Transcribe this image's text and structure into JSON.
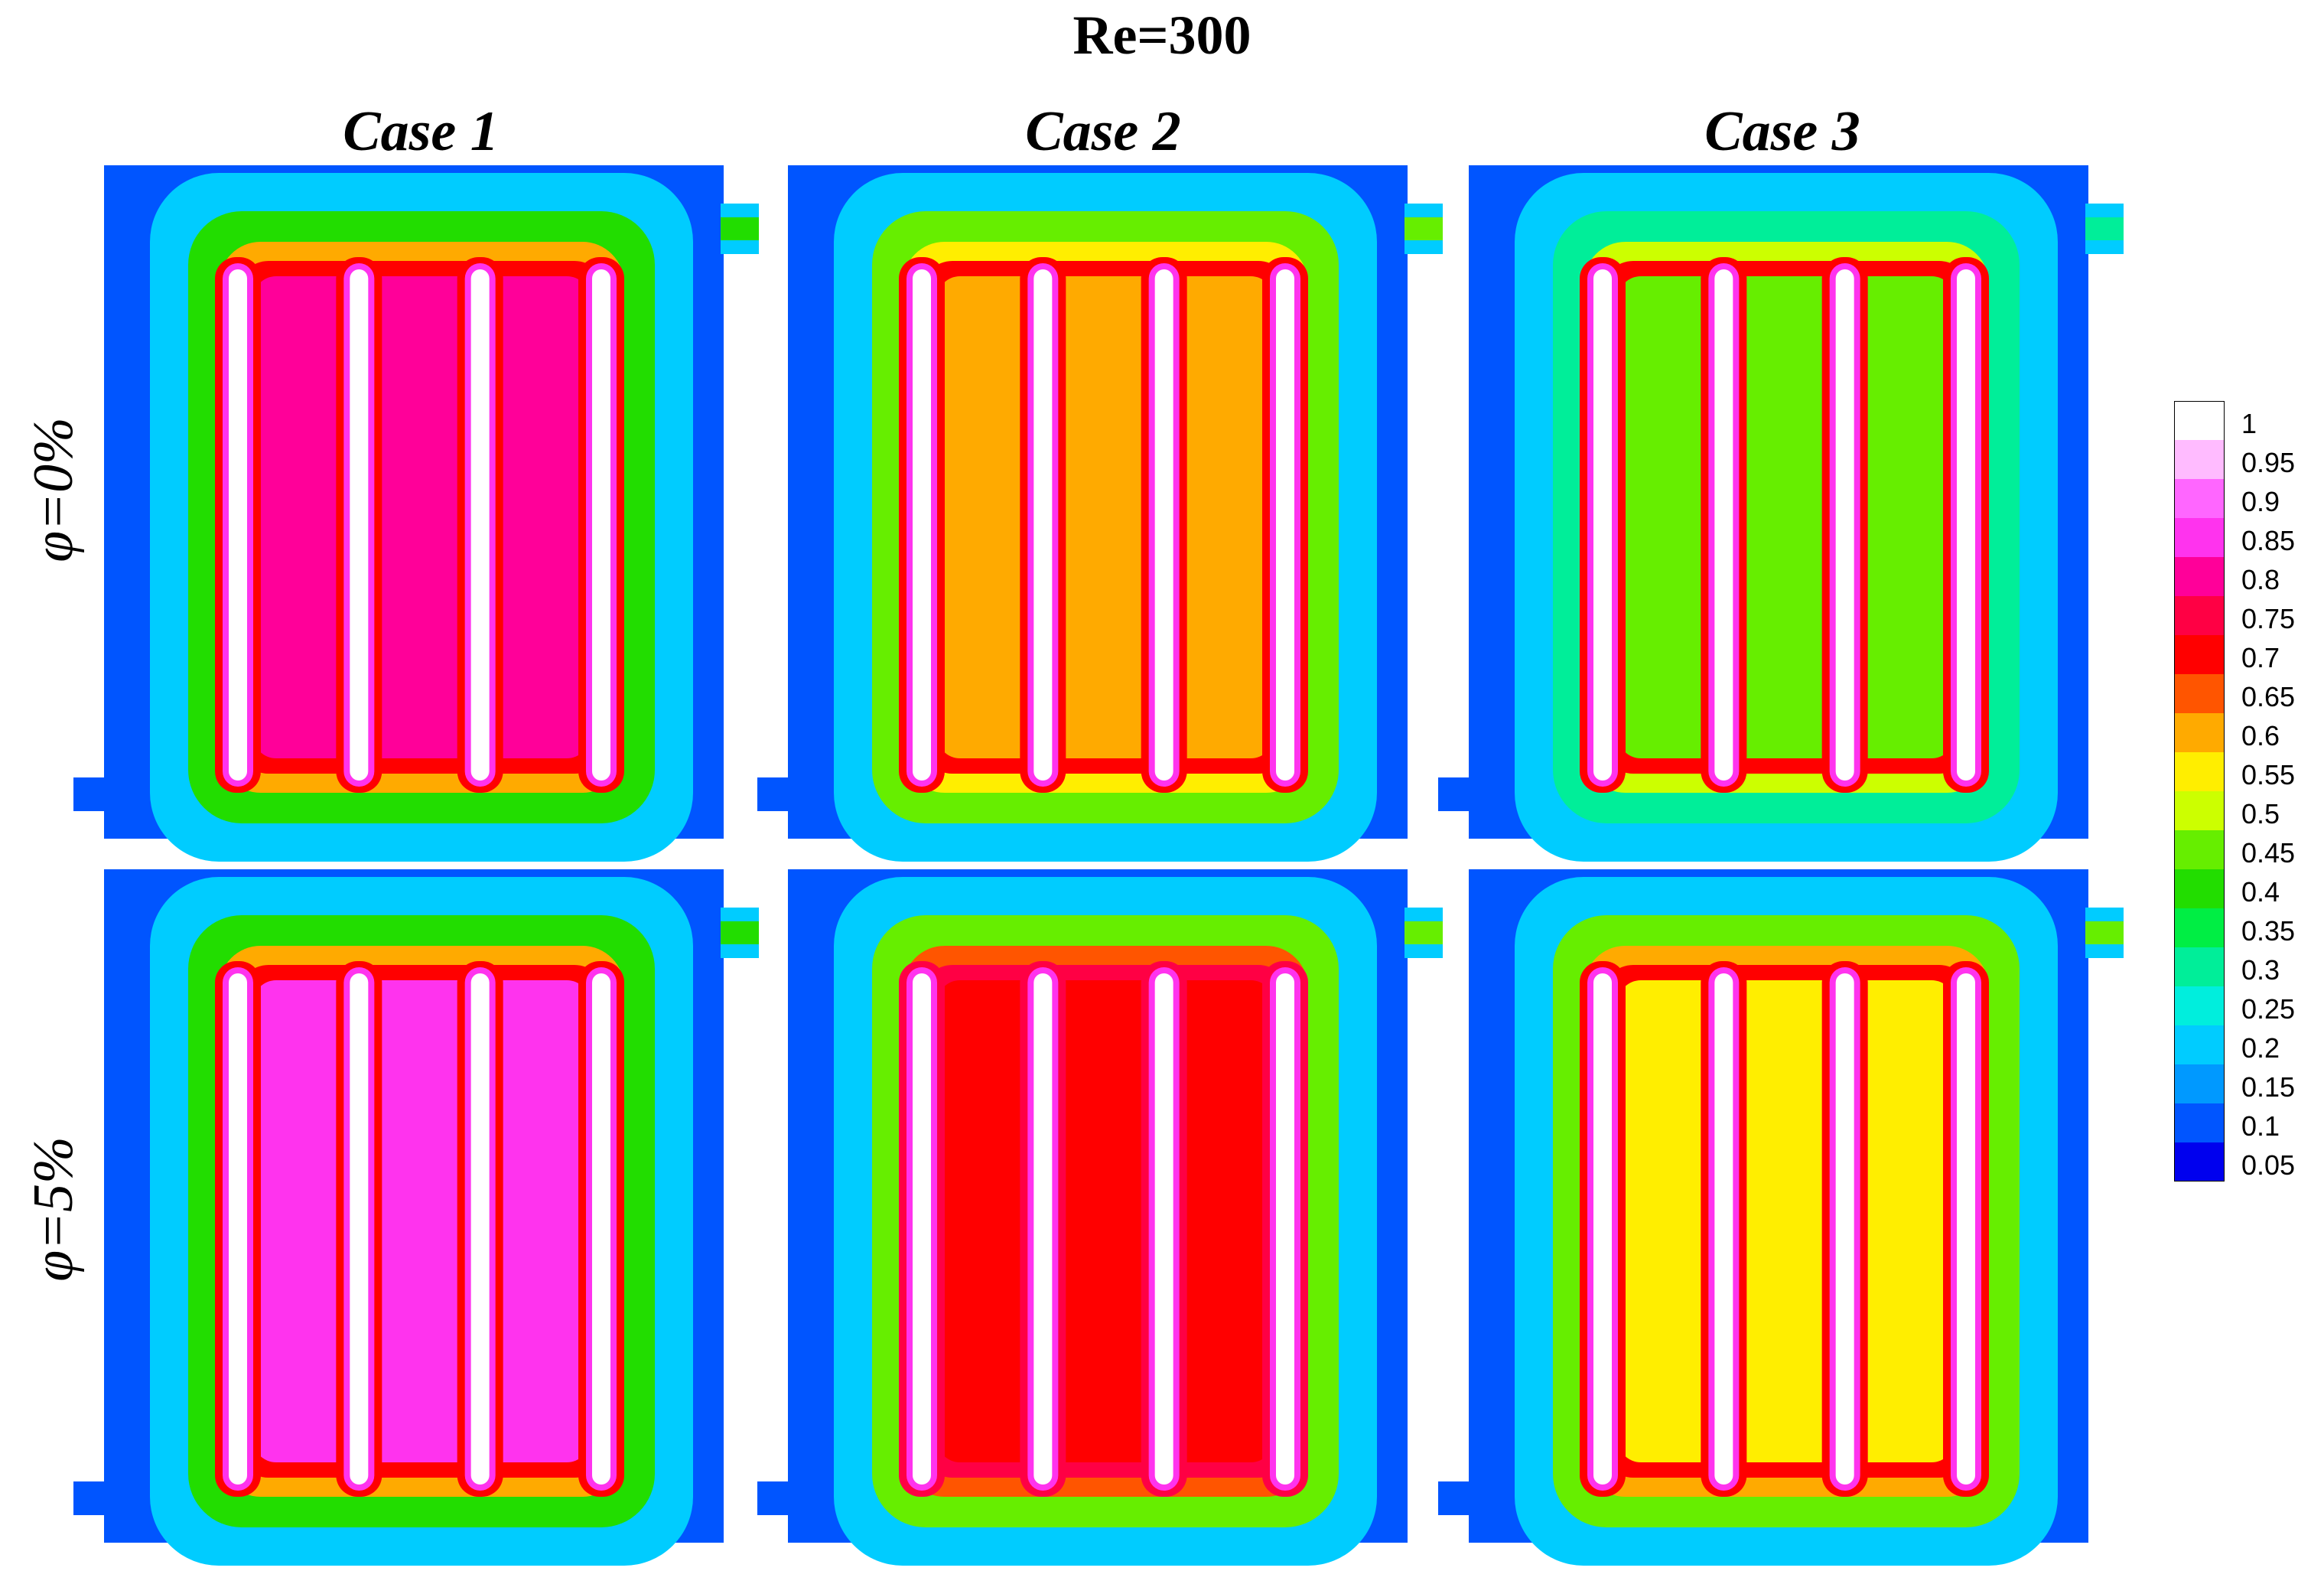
{
  "title": "Re=300",
  "columns": [
    {
      "label": "Case 1"
    },
    {
      "label": "Case 2"
    },
    {
      "label": "Case 3"
    }
  ],
  "rows": [
    {
      "label": "φ=0%"
    },
    {
      "label": "φ=5%"
    }
  ],
  "colorbar": {
    "levels": [
      "1",
      "0.95",
      "0.9",
      "0.85",
      "0.8",
      "0.75",
      "0.7",
      "0.65",
      "0.6",
      "0.55",
      "0.5",
      "0.45",
      "0.4",
      "0.35",
      "0.3",
      "0.25",
      "0.2",
      "0.15",
      "0.1",
      "0.05"
    ],
    "colors": [
      "#ffffff",
      "#ffbbff",
      "#ff66ff",
      "#ff33ee",
      "#ff0099",
      "#ff0044",
      "#ff0000",
      "#ff5500",
      "#ffaa00",
      "#ffee00",
      "#ccff00",
      "#66ee00",
      "#22dd00",
      "#00ee44",
      "#00ee99",
      "#00eedd",
      "#00ccff",
      "#0099ff",
      "#0055ff",
      "#0000ee"
    ]
  },
  "panels": [
    {
      "row": 0,
      "col": 0,
      "fin_count": 4,
      "fill_color": "#ff0099",
      "halo_color": "#ff0000",
      "mid_color": "#ffaa00",
      "outer_color": "#22dd00",
      "edge_color": "#00ccff",
      "background_color": "#0055ff"
    },
    {
      "row": 0,
      "col": 1,
      "fin_count": 4,
      "fill_color": "#ffaa00",
      "halo_color": "#ff0000",
      "mid_color": "#ffee00",
      "outer_color": "#66ee00",
      "edge_color": "#00ccff",
      "background_color": "#0055ff"
    },
    {
      "row": 0,
      "col": 2,
      "fin_count": 4,
      "fill_color": "#66ee00",
      "halo_color": "#ff0000",
      "mid_color": "#ccff00",
      "outer_color": "#00ee99",
      "edge_color": "#00ccff",
      "background_color": "#0055ff"
    },
    {
      "row": 1,
      "col": 0,
      "fin_count": 4,
      "fill_color": "#ff33ee",
      "halo_color": "#ff0000",
      "mid_color": "#ffaa00",
      "outer_color": "#22dd00",
      "edge_color": "#00ccff",
      "background_color": "#0055ff"
    },
    {
      "row": 1,
      "col": 1,
      "fin_count": 4,
      "fill_color": "#ff0000",
      "halo_color": "#ff0044",
      "mid_color": "#ff5500",
      "outer_color": "#66ee00",
      "edge_color": "#00ccff",
      "background_color": "#0055ff"
    },
    {
      "row": 1,
      "col": 2,
      "fin_count": 4,
      "fill_color": "#ffee00",
      "halo_color": "#ff0000",
      "mid_color": "#ffaa00",
      "outer_color": "#66ee00",
      "edge_color": "#00ccff",
      "background_color": "#0055ff"
    }
  ]
}
